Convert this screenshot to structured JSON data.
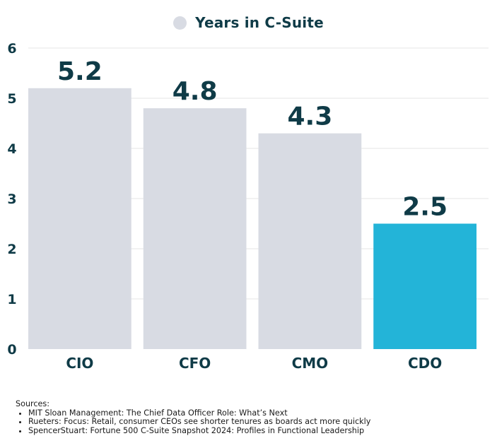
{
  "chart_data": {
    "type": "bar",
    "categories": [
      "CIO",
      "CFO",
      "CMO",
      "CDO"
    ],
    "series": [
      {
        "name": "Years in C-Suite",
        "values": [
          5.2,
          4.8,
          4.3,
          2.5
        ]
      }
    ],
    "data_labels": [
      "5.2",
      "4.8",
      "4.3",
      "2.5"
    ],
    "title": "",
    "xlabel": "",
    "ylabel": "",
    "ylim": [
      0,
      6
    ],
    "yticks": [
      "0",
      "1",
      "2",
      "3",
      "4",
      "5",
      "6"
    ],
    "grid": true,
    "legend": "top-center",
    "bar_colors": [
      "#d8dbe3",
      "#d8dbe3",
      "#d8dbe3",
      "#23b4d8"
    ],
    "text_color": "#0f3b47",
    "grid_color": "#e6e6e6"
  },
  "sources": {
    "heading": "Sources:",
    "items": [
      "MIT Sloan Management: The Chief Data Officer Role: What’s Next",
      "Rueters: Focus: Retail, consumer CEOs see shorter tenures as boards act more quickly",
      "SpencerStuart: Fortune 500 C-Suite Snapshot 2024: Profiles in Functional Leadership"
    ]
  }
}
